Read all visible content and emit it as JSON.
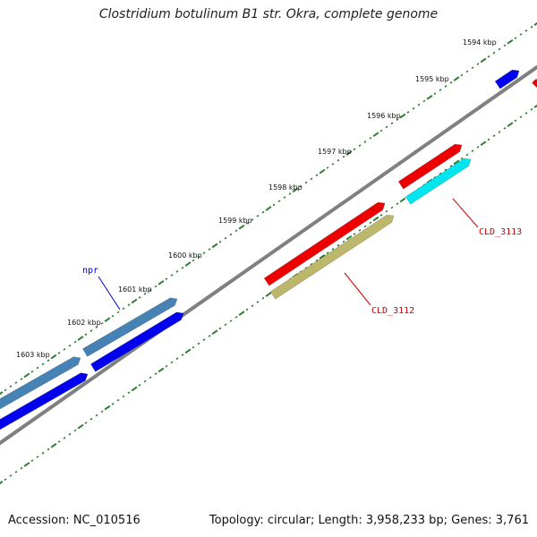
{
  "title": "Clostridium botulinum B1 str. Okra, complete genome",
  "footer": {
    "accession": "Accession: NC_010516",
    "summary": "Topology: circular; Length: 3,958,233 bp; Genes: 3,761"
  },
  "colors": {
    "backbone": "#808080",
    "ticks": "#2e7d32",
    "cds_blue": "#0000ee",
    "cds_steel": "#4682b4",
    "cds_red": "#ee0000",
    "cds_cyan": "#00e5ee",
    "cds_khaki": "#bdb76b",
    "label_blue": "#0000cc",
    "label_red": "#cc0000"
  },
  "tick_labels": [
    "1594 kbp",
    "1595 kbp",
    "1596 kbp",
    "1597 kbp",
    "1598 kbp",
    "1599 kbp",
    "1600 kbp",
    "1601 kbp",
    "1602 kbp",
    "1603 kbp"
  ],
  "gene_labels": [
    {
      "text": "npr",
      "color_key": "label_blue"
    },
    {
      "text": "CLD_3112",
      "color_key": "label_red"
    },
    {
      "text": "CLD_3113",
      "color_key": "label_red"
    }
  ]
}
